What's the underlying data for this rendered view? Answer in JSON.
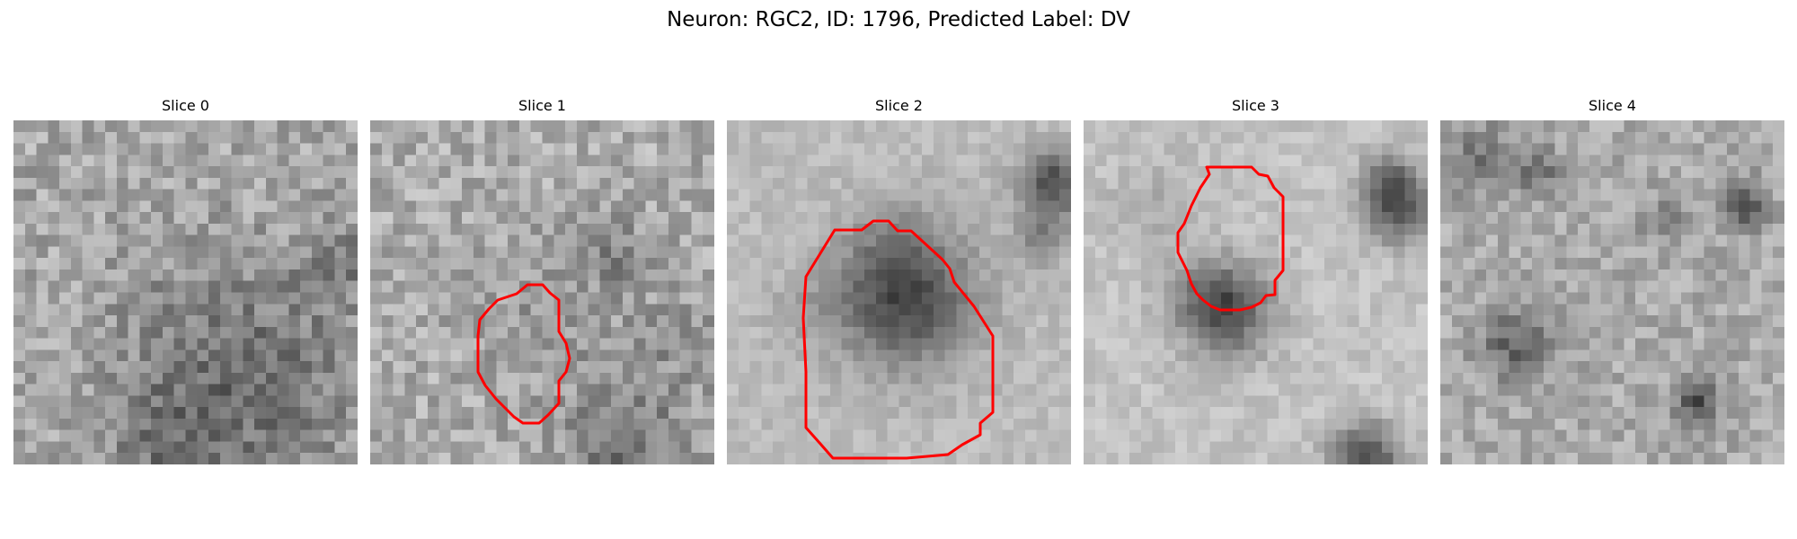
{
  "figure": {
    "title": "Neuron: RGC2, ID: 1796, Predicted Label: DV",
    "contour_color": "#ff0000"
  },
  "slices": [
    {
      "title": "Slice 0",
      "has_contour": false
    },
    {
      "title": "Slice 1",
      "has_contour": true
    },
    {
      "title": "Slice 2",
      "has_contour": true
    },
    {
      "title": "Slice 3",
      "has_contour": true
    },
    {
      "title": "Slice 4",
      "has_contour": false
    }
  ]
}
